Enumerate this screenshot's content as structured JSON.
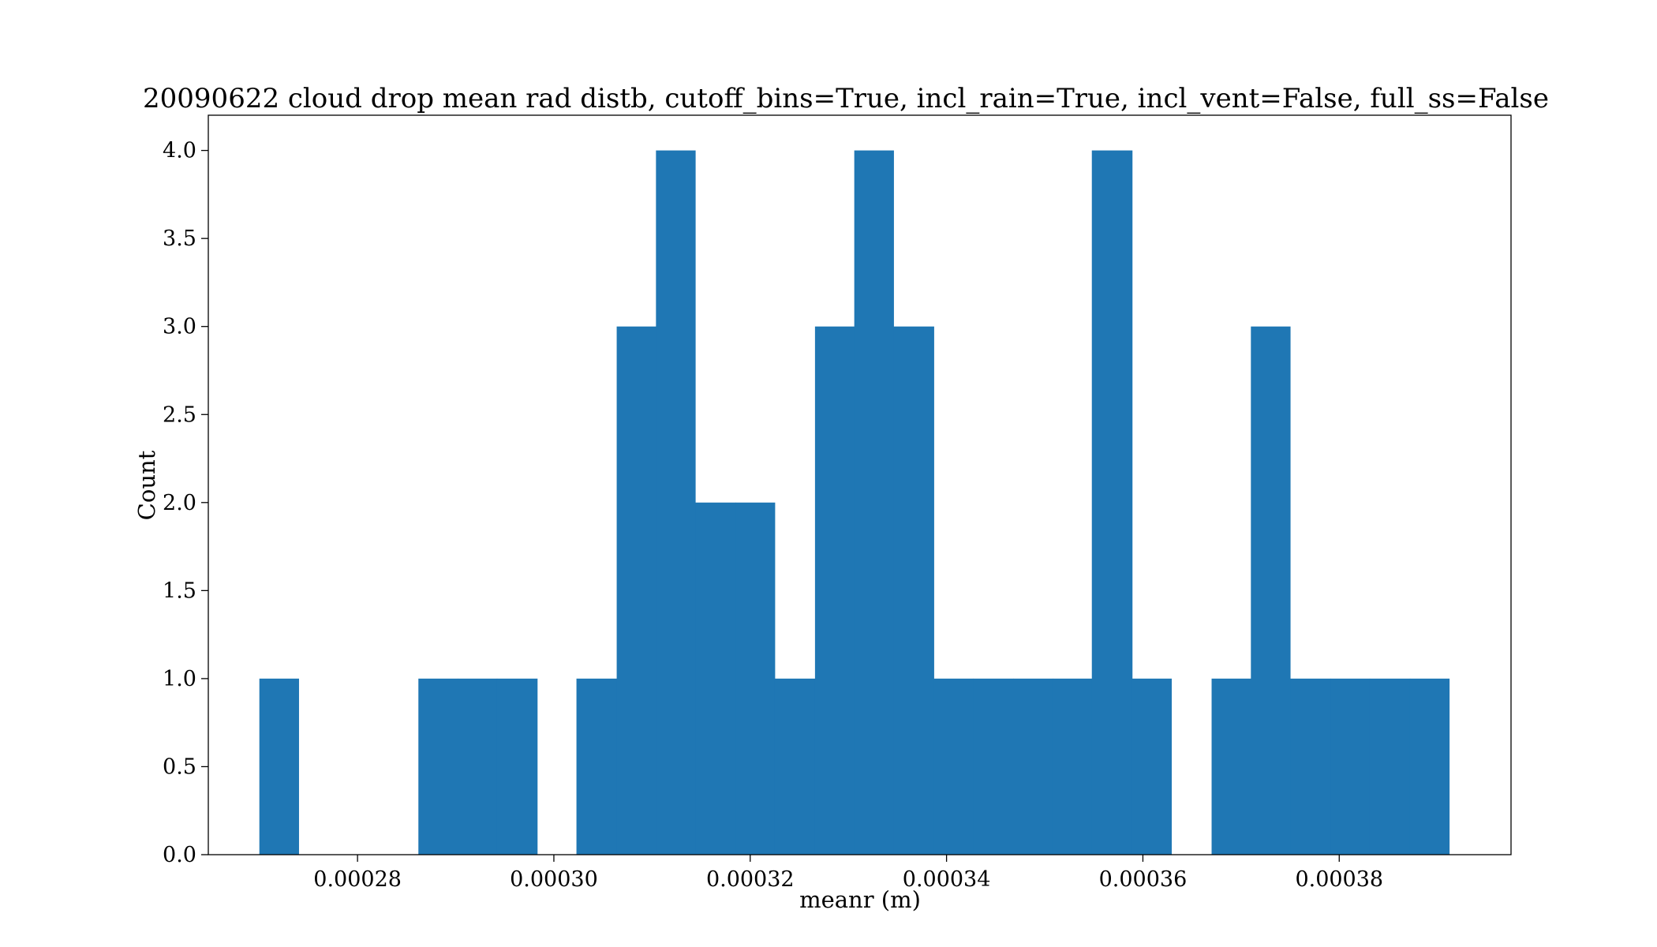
{
  "chart_data": {
    "type": "bar",
    "title": "20090622 cloud drop mean rad distb, cutoff_bins=True, incl_rain=True, incl_vent=False, full_ss=False",
    "xlabel": "meanr (m)",
    "ylabel": "Count",
    "xlim": [
      0.0002648,
      0.0003975
    ],
    "ylim": [
      0,
      4.2
    ],
    "bar_color": "#1f77b4",
    "grid": false,
    "x_ticks": [
      0.00028,
      0.0003,
      0.00032,
      0.00034,
      0.00036,
      0.00038
    ],
    "x_tick_labels": [
      "0.00028",
      "0.00030",
      "0.00032",
      "0.00034",
      "0.00036",
      "0.00038"
    ],
    "y_ticks": [
      0.0,
      0.5,
      1.0,
      1.5,
      2.0,
      2.5,
      3.0,
      3.5,
      4.0
    ],
    "y_tick_labels": [
      "0.0",
      "0.5",
      "1.0",
      "1.5",
      "2.0",
      "2.5",
      "3.0",
      "3.5",
      "4.0"
    ],
    "bin_edges": [
      0.00027,
      0.000274,
      0.0002781,
      0.0002821,
      0.0002862,
      0.0002902,
      0.0002942,
      0.0002983,
      0.0003023,
      0.0003064,
      0.0003104,
      0.0003144,
      0.0003185,
      0.0003225,
      0.0003266,
      0.0003306,
      0.0003346,
      0.0003387,
      0.0003427,
      0.0003468,
      0.0003508,
      0.0003548,
      0.0003589,
      0.0003629,
      0.000367,
      0.000371,
      0.000375,
      0.0003791,
      0.0003831,
      0.0003872,
      0.0003912
    ],
    "counts": [
      1,
      0,
      0,
      0,
      1,
      1,
      1,
      0,
      1,
      3,
      4,
      2,
      2,
      1,
      3,
      4,
      3,
      1,
      1,
      1,
      1,
      4,
      1,
      0,
      1,
      3,
      1,
      1,
      1,
      1
    ]
  }
}
